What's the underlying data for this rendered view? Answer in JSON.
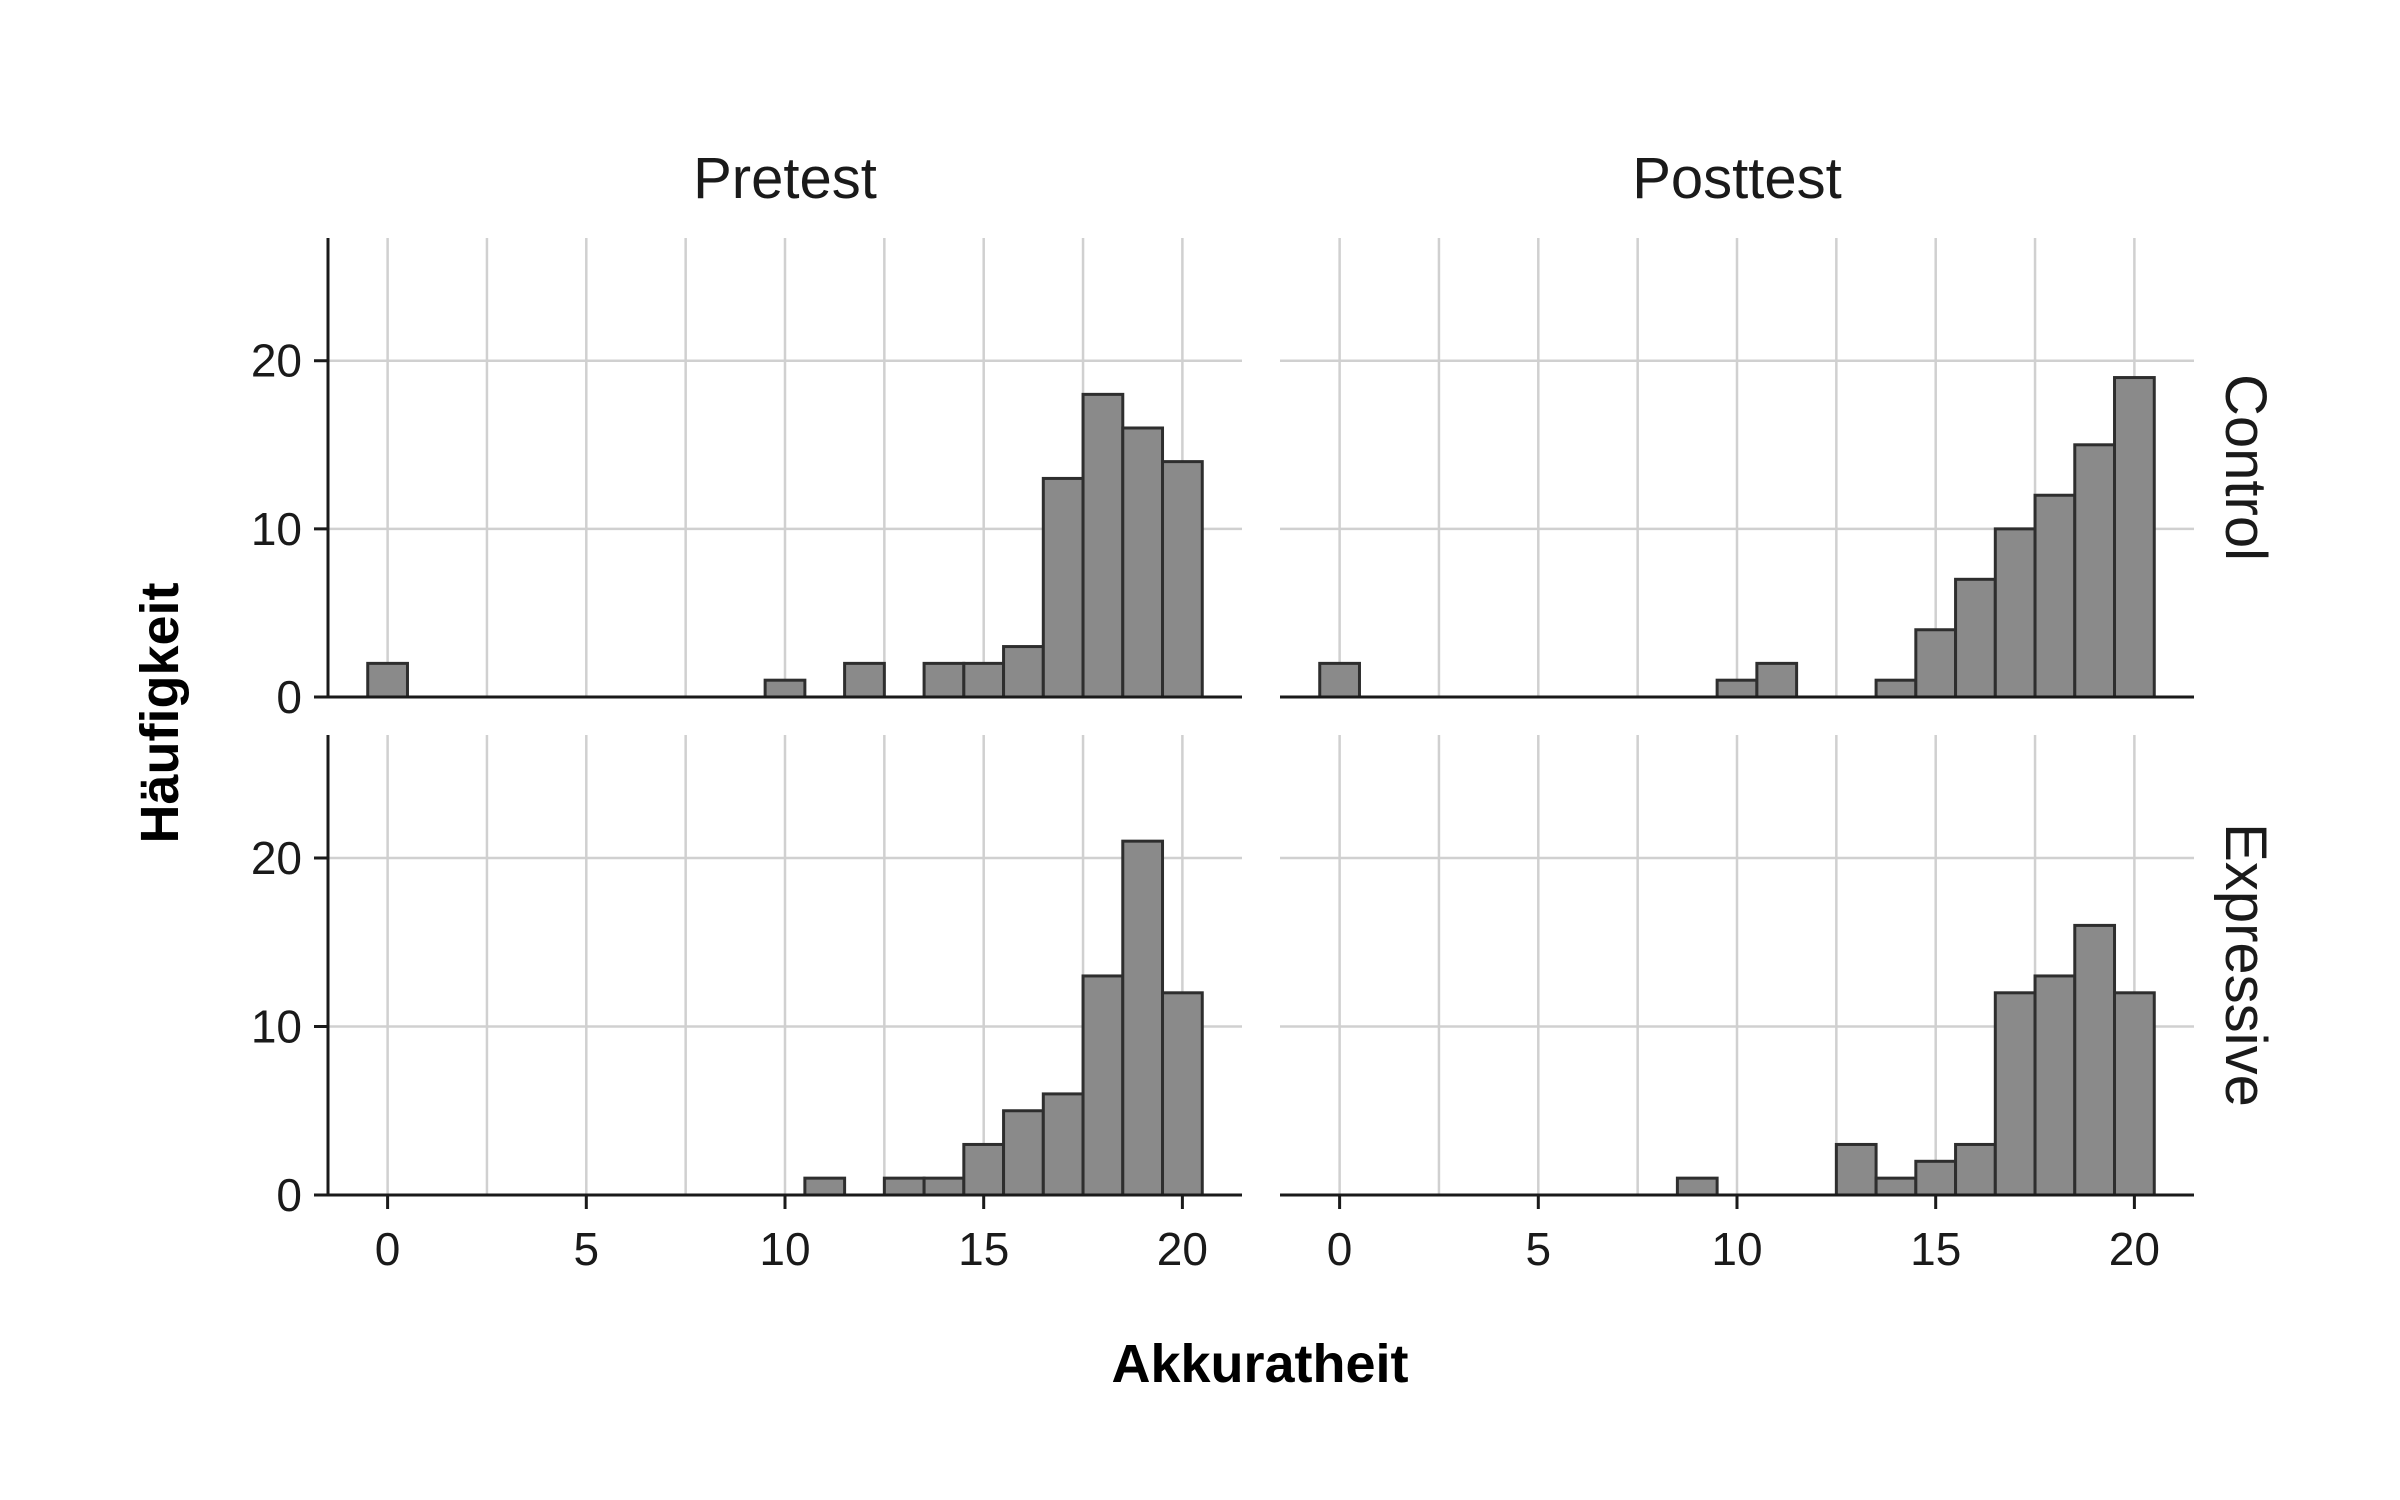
{
  "chart_data": {
    "type": "bar",
    "xlabel": "Akkuratheit",
    "ylabel": "Häufigkeit",
    "xlim": [
      -1.5,
      21.5
    ],
    "ylim": [
      0,
      27.3
    ],
    "xticks": [
      0,
      5,
      10,
      15,
      20
    ],
    "yticks": [
      0,
      10,
      20
    ],
    "grid": true,
    "columns": [
      "Pretest",
      "Posttest"
    ],
    "rows": [
      "Control",
      "Expressive"
    ],
    "bin_width": 1,
    "panels": [
      {
        "column": "Pretest",
        "row": "Control",
        "bins": [
          {
            "x": 0,
            "count": 2
          },
          {
            "x": 10,
            "count": 1
          },
          {
            "x": 12,
            "count": 2
          },
          {
            "x": 14,
            "count": 2
          },
          {
            "x": 15,
            "count": 2
          },
          {
            "x": 16,
            "count": 3
          },
          {
            "x": 17,
            "count": 13
          },
          {
            "x": 18,
            "count": 18
          },
          {
            "x": 19,
            "count": 16
          },
          {
            "x": 20,
            "count": 14
          }
        ]
      },
      {
        "column": "Posttest",
        "row": "Control",
        "bins": [
          {
            "x": 0,
            "count": 2
          },
          {
            "x": 10,
            "count": 1
          },
          {
            "x": 11,
            "count": 2
          },
          {
            "x": 14,
            "count": 1
          },
          {
            "x": 15,
            "count": 4
          },
          {
            "x": 16,
            "count": 7
          },
          {
            "x": 17,
            "count": 10
          },
          {
            "x": 18,
            "count": 12
          },
          {
            "x": 19,
            "count": 15
          },
          {
            "x": 20,
            "count": 19
          }
        ]
      },
      {
        "column": "Pretest",
        "row": "Expressive",
        "bins": [
          {
            "x": 11,
            "count": 1
          },
          {
            "x": 13,
            "count": 1
          },
          {
            "x": 14,
            "count": 1
          },
          {
            "x": 15,
            "count": 3
          },
          {
            "x": 16,
            "count": 5
          },
          {
            "x": 17,
            "count": 6
          },
          {
            "x": 18,
            "count": 13
          },
          {
            "x": 19,
            "count": 21
          },
          {
            "x": 20,
            "count": 12
          }
        ]
      },
      {
        "column": "Posttest",
        "row": "Expressive",
        "bins": [
          {
            "x": 9,
            "count": 1
          },
          {
            "x": 13,
            "count": 3
          },
          {
            "x": 14,
            "count": 1
          },
          {
            "x": 15,
            "count": 2
          },
          {
            "x": 16,
            "count": 3
          },
          {
            "x": 17,
            "count": 12
          },
          {
            "x": 18,
            "count": 13
          },
          {
            "x": 19,
            "count": 16
          },
          {
            "x": 20,
            "count": 12
          }
        ]
      }
    ]
  }
}
